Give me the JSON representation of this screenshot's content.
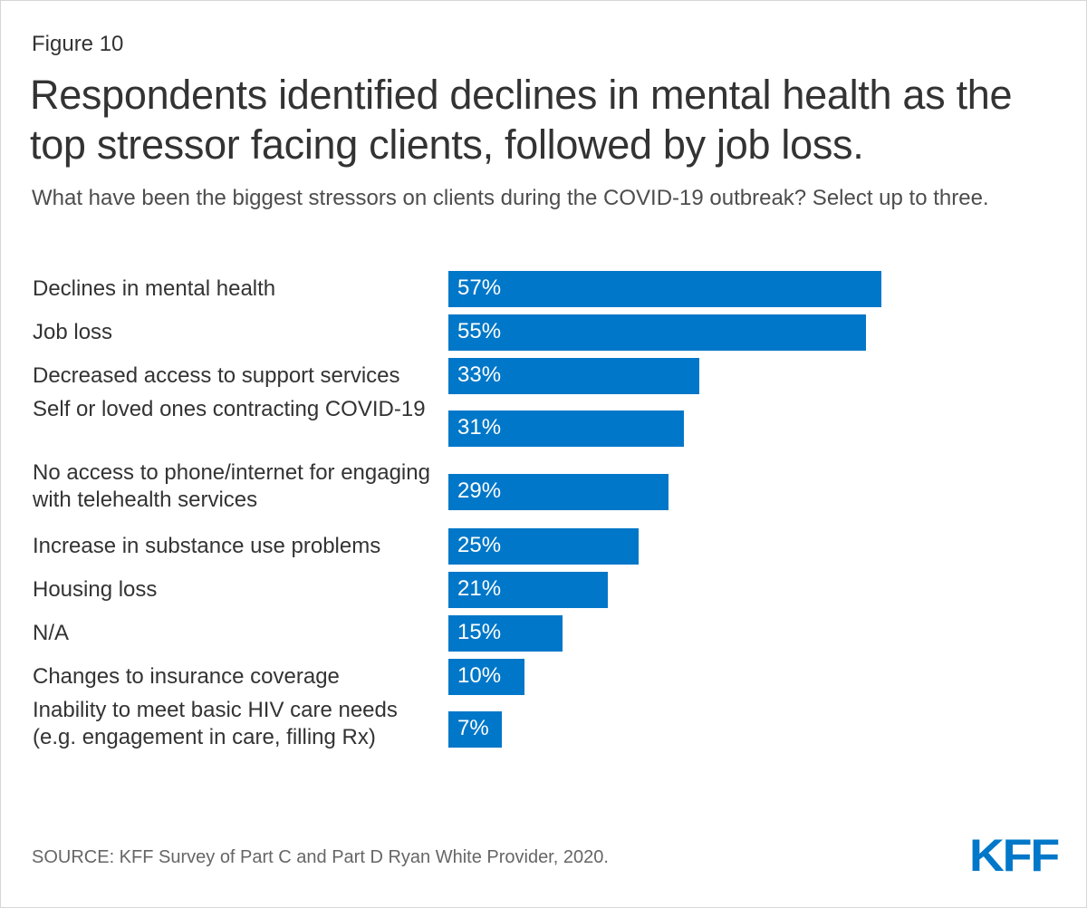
{
  "figure_label": "Figure 10",
  "title": "Respondents identified declines in mental health as the top stressor facing clients, followed by job loss.",
  "subtitle": "What have been the biggest stressors on clients during the COVID-19 outbreak? Select up to three.",
  "source": "SOURCE: KFF Survey of Part C and Part D Ryan White Provider, 2020.",
  "logo_text": "KFF",
  "colors": {
    "bar": "#0077c8",
    "text": "#333333",
    "logo": "#0077c8"
  },
  "chart_data": {
    "type": "bar",
    "orientation": "horizontal",
    "title": "What have been the biggest stressors on clients during the COVID-19 outbreak? Select up to three.",
    "xlabel": "",
    "ylabel": "",
    "xlim": [
      0,
      57
    ],
    "grid": false,
    "legend": "none",
    "categories": [
      "Declines in mental health",
      "Job loss",
      "Decreased access to support services",
      "Self or loved ones contracting COVID-19",
      "No access to phone/internet for engaging with telehealth services",
      "Increase in substance use problems",
      "Housing loss",
      "N/A",
      "Changes to insurance coverage",
      "Inability to meet basic HIV care needs (e.g. engagement in care, filling Rx)"
    ],
    "values": [
      57,
      55,
      33,
      31,
      29,
      25,
      21,
      15,
      10,
      7
    ],
    "value_labels": [
      "57%",
      "55%",
      "33%",
      "31%",
      "29%",
      "25%",
      "21%",
      "15%",
      "10%",
      "7%"
    ]
  }
}
